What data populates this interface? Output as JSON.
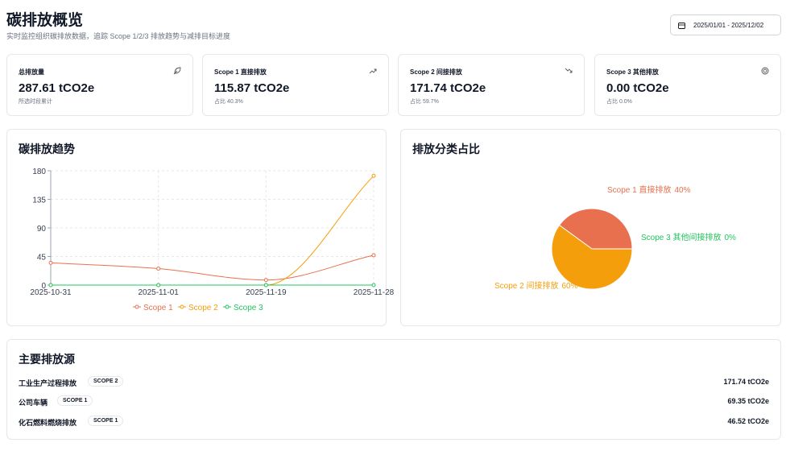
{
  "header": {
    "title": "碳排放概览",
    "subtitle": "实时监控组织碳排放数据，追踪 Scope 1/2/3 排放趋势与减排目标进度",
    "date_range": "2025/01/01 - 2025/12/02"
  },
  "kpis": [
    {
      "label": "总排放量",
      "value": "287.61 tCO2e",
      "note": "所选时段累计"
    },
    {
      "label": "Scope 1 直接排放",
      "value": "115.87 tCO2e",
      "note": "占比 40.3%"
    },
    {
      "label": "Scope 2 间接排放",
      "value": "171.74 tCO2e",
      "note": "占比 59.7%"
    },
    {
      "label": "Scope 3 其他排放",
      "value": "0.00 tCO2e",
      "note": "占比 0.0%"
    }
  ],
  "trend_chart": {
    "type": "line",
    "title": "碳排放趋势",
    "categories": [
      "2025-10-31",
      "2025-11-01",
      "2025-11-19",
      "2025-11-28"
    ],
    "series": [
      {
        "name": "Scope 1",
        "color": "#e8704f",
        "values": [
          35,
          26,
          8,
          47
        ]
      },
      {
        "name": "Scope 2",
        "color": "#f59e0b",
        "values": [
          0,
          0,
          0,
          172
        ]
      },
      {
        "name": "Scope 3",
        "color": "#22c55e",
        "values": [
          0,
          0,
          0,
          0
        ]
      }
    ],
    "ylim": [
      0,
      180
    ],
    "yticks": [
      0,
      45,
      90,
      135,
      180
    ],
    "grid": true,
    "legend": "bottom"
  },
  "pie_chart": {
    "type": "pie",
    "title": "排放分类占比",
    "categories": [
      "Scope 1 直接排放",
      "Scope 2 间接排放",
      "Scope 3 其他间接排放"
    ],
    "values": [
      40,
      60,
      0
    ],
    "value_labels": [
      "40%",
      "60%",
      "0%"
    ],
    "colors": [
      "#e8704f",
      "#f59e0b",
      "#22c55e"
    ]
  },
  "sources": {
    "title": "主要排放源",
    "rows": [
      {
        "name": "工业生产过程排放",
        "scope": "SCOPE 2",
        "value": "171.74 tCO2e"
      },
      {
        "name": "公司车辆",
        "scope": "SCOPE 1",
        "value": "69.35 tCO2e"
      },
      {
        "name": "化石燃料燃烧排放",
        "scope": "SCOPE 1",
        "value": "46.52 tCO2e"
      }
    ]
  }
}
